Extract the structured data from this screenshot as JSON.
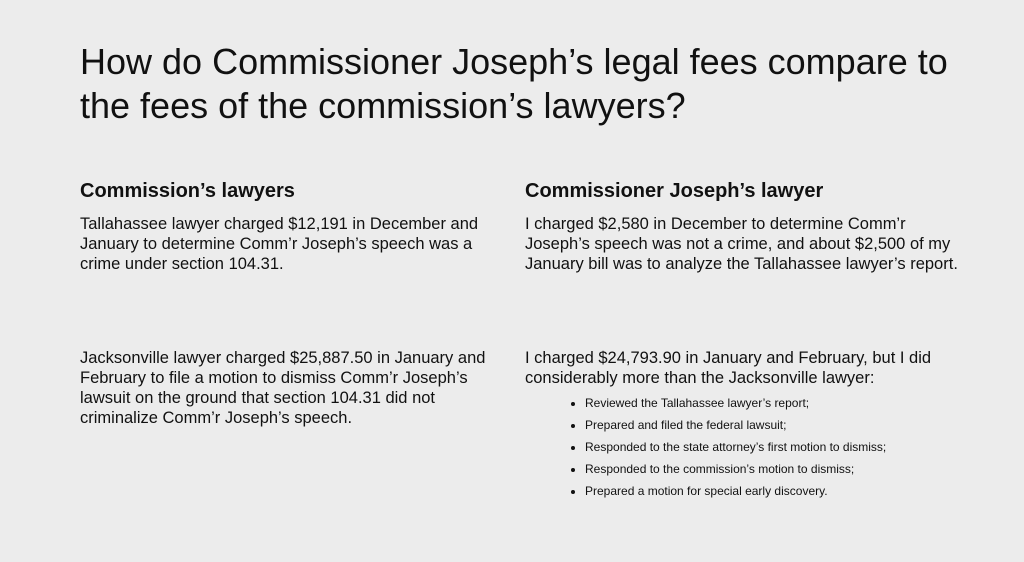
{
  "title": "How do Commissioner Joseph’s legal fees compare to the fees of the commission’s lawyers?",
  "left": {
    "heading": "Commission’s lawyers",
    "paragraphs": [
      "Tallahassee lawyer charged $12,191 in December and January to determine Comm’r Joseph’s speech was a crime under section 104.31.",
      "Jacksonville lawyer charged $25,887.50 in January and February to file a motion to dismiss Comm’r Joseph’s lawsuit on the ground that section 104.31 did not criminalize Comm’r Joseph’s speech."
    ]
  },
  "right": {
    "heading": "Commissioner Joseph’s lawyer",
    "paragraphs": [
      "I charged $2,580 in December to determine Comm’r Joseph’s speech was not a crime, and about $2,500 of my January bill was to analyze the Tallahassee lawyer’s report.",
      "I charged $24,793.90 in January and February, but I did considerably more than the Jacksonville lawyer:"
    ],
    "bullets": [
      "Reviewed the Tallahassee lawyer’s report;",
      "Prepared and filed the federal lawsuit;",
      "Responded to the state attorney’s first motion to dismiss;",
      "Responded to the commission’s motion to dismiss;",
      "Prepared a motion for special early discovery."
    ]
  }
}
